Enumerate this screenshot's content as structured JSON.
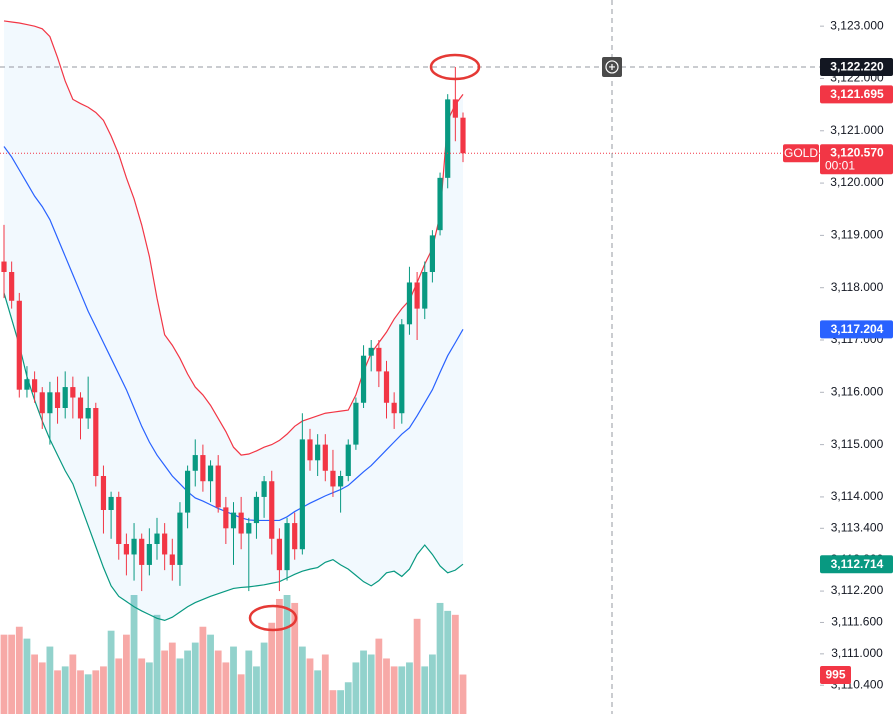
{
  "chart_data": {
    "type": "candlestick",
    "ylim": [
      3109.85,
      3123.5
    ],
    "yticks": [
      {
        "value": 3123,
        "label": "3,123.000"
      },
      {
        "value": 3122,
        "label": "3,122.000"
      },
      {
        "value": 3121,
        "label": "3,121.000"
      },
      {
        "value": 3120,
        "label": "3,120.000"
      },
      {
        "value": 3119,
        "label": "3,119.000"
      },
      {
        "value": 3118,
        "label": "3,118.000"
      },
      {
        "value": 3117,
        "label": "3,117.000"
      },
      {
        "value": 3116,
        "label": "3,116.000"
      },
      {
        "value": 3115,
        "label": "3,115.000"
      },
      {
        "value": 3114,
        "label": "3,114.000"
      },
      {
        "value": 3113.4,
        "label": "3,113.400"
      },
      {
        "value": 3112.8,
        "label": "3,112.800"
      },
      {
        "value": 3112.2,
        "label": "3,112.200"
      },
      {
        "value": 3111.6,
        "label": "3,111.600"
      },
      {
        "value": 3111,
        "label": "3,111.000"
      },
      {
        "value": 3110.4,
        "label": "3,110.400"
      }
    ],
    "grid": false,
    "up_color": "#089981",
    "down_color": "#f23645",
    "open": [
      3118.5,
      3118.3,
      3117.75,
      3116.05,
      3116.25,
      3116.0,
      3115.6,
      3116.0,
      3115.7,
      3116.1,
      3115.9,
      3115.5,
      3115.7,
      3114.4,
      3113.75,
      3114.0,
      3113.1,
      3112.9,
      3113.2,
      3112.7,
      3113.1,
      3113.3,
      3112.9,
      3112.7,
      3113.7,
      3114.5,
      3114.8,
      3114.3,
      3114.6,
      3113.8,
      3113.4,
      3113.7,
      3113.3,
      3113.5,
      3114.0,
      3114.3,
      3113.2,
      3112.6,
      3113.5,
      3113.0,
      3115.1,
      3114.7,
      3115.0,
      3114.5,
      3114.2,
      3114.4,
      3115.0,
      3115.8,
      3116.7,
      3116.85,
      3116.4,
      3115.8,
      3115.6,
      3117.3,
      3118.1,
      3117.6,
      3118.3,
      3119.1,
      3120.1,
      3121.6,
      3121.25
    ],
    "high": [
      3119.2,
      3118.5,
      3117.9,
      3116.5,
      3116.4,
      3116.1,
      3116.2,
      3116.3,
      3116.4,
      3116.3,
      3116.0,
      3116.3,
      3115.8,
      3114.6,
      3114.1,
      3114.1,
      3113.3,
      3113.5,
      3113.3,
      3113.4,
      3113.6,
      3113.5,
      3113.2,
      3113.9,
      3114.6,
      3115.1,
      3115.0,
      3114.7,
      3114.8,
      3114.0,
      3113.9,
      3114.0,
      3113.6,
      3114.1,
      3114.4,
      3114.5,
      3113.4,
      3113.6,
      3113.7,
      3115.6,
      3115.3,
      3115.2,
      3115.2,
      3114.9,
      3114.5,
      3115.1,
      3115.9,
      3116.9,
      3117.0,
      3117.0,
      3116.6,
      3116.0,
      3117.4,
      3118.4,
      3118.3,
      3118.5,
      3119.1,
      3120.2,
      3121.7,
      3122.22,
      3121.35
    ],
    "low": [
      3117.8,
      3117.6,
      3115.9,
      3115.9,
      3115.8,
      3115.3,
      3115.0,
      3115.4,
      3115.5,
      3115.5,
      3115.1,
      3115.3,
      3114.2,
      3113.3,
      3113.2,
      3112.8,
      3112.5,
      3112.4,
      3112.2,
      3112.5,
      3112.8,
      3112.6,
      3112.4,
      3112.3,
      3113.4,
      3114.2,
      3114.1,
      3113.9,
      3113.7,
      3113.1,
      3112.7,
      3113.0,
      3112.2,
      3113.2,
      3113.6,
      3112.9,
      3112.2,
      3112.4,
      3112.8,
      3112.9,
      3114.5,
      3114.4,
      3114.3,
      3114.0,
      3113.7,
      3114.3,
      3114.9,
      3115.7,
      3116.4,
      3116.1,
      3115.5,
      3115.3,
      3115.4,
      3117.1,
      3117.0,
      3117.4,
      3118.1,
      3119.0,
      3119.9,
      3120.8,
      3120.4
    ],
    "close": [
      3118.3,
      3117.75,
      3116.05,
      3116.25,
      3116.0,
      3115.6,
      3116.0,
      3115.7,
      3116.1,
      3115.9,
      3115.5,
      3115.7,
      3114.4,
      3113.75,
      3114.0,
      3113.1,
      3112.9,
      3113.2,
      3112.7,
      3113.1,
      3113.3,
      3112.9,
      3112.7,
      3113.7,
      3114.5,
      3114.8,
      3114.3,
      3114.6,
      3113.8,
      3113.4,
      3113.7,
      3113.3,
      3113.5,
      3114.0,
      3114.3,
      3113.2,
      3112.6,
      3113.5,
      3113.0,
      3115.1,
      3114.7,
      3115.0,
      3114.5,
      3114.2,
      3114.4,
      3115.0,
      3115.8,
      3116.7,
      3116.85,
      3116.4,
      3115.8,
      3115.6,
      3117.3,
      3118.1,
      3117.6,
      3118.3,
      3119.0,
      3120.1,
      3121.6,
      3121.25,
      3120.57
    ],
    "volume": {
      "vlim": [
        0,
        18000
      ],
      "up_color": "#92d2cc",
      "down_color": "#f7a9a7",
      "values": [
        2000,
        2000,
        2200,
        1900,
        1500,
        1300,
        1700,
        1100,
        1200,
        1500,
        1100,
        1000,
        1100,
        1200,
        2100,
        1400,
        2000,
        3000,
        1400,
        1300,
        2500,
        1600,
        1800,
        1400,
        1600,
        1800,
        2200,
        2000,
        1600,
        1300,
        1700,
        1000,
        1600,
        1200,
        1800,
        2300,
        2900,
        3000,
        2800,
        1700,
        1400,
        1100,
        1500,
        600,
        600,
        800,
        1300,
        1600,
        1500,
        1900,
        1400,
        1200,
        1200,
        1300,
        2400,
        1200,
        1500,
        2800,
        2600,
        2500,
        995
      ]
    },
    "bands": {
      "fill_color": "#2196f3",
      "upper": {
        "color": "#f23645",
        "value_label": "3,121.695",
        "values": [
          3123.1,
          3123.08,
          3123.06,
          3123.03,
          3123.0,
          3122.95,
          3122.8,
          3122.4,
          3121.95,
          3121.6,
          3121.52,
          3121.45,
          3121.35,
          3121.2,
          3120.9,
          3120.55,
          3120.1,
          3119.7,
          3119.2,
          3118.6,
          3117.8,
          3117.1,
          3116.9,
          3116.65,
          3116.35,
          3116.1,
          3115.95,
          3115.75,
          3115.5,
          3115.25,
          3114.95,
          3114.8,
          3114.82,
          3114.88,
          3114.95,
          3115.0,
          3115.08,
          3115.2,
          3115.35,
          3115.45,
          3115.5,
          3115.55,
          3115.6,
          3115.62,
          3115.64,
          3115.66,
          3115.95,
          3116.4,
          3116.75,
          3116.95,
          3117.15,
          3117.4,
          3117.6,
          3117.76,
          3118.1,
          3118.45,
          3118.75,
          3119.39,
          3121.2,
          3121.5,
          3121.695
        ]
      },
      "middle": {
        "color": "#2962ff",
        "value_label": "3,117.204",
        "values": [
          3120.7,
          3120.5,
          3120.25,
          3120.0,
          3119.75,
          3119.55,
          3119.3,
          3118.95,
          3118.6,
          3118.25,
          3117.9,
          3117.55,
          3117.25,
          3116.95,
          3116.65,
          3116.35,
          3116.05,
          3115.7,
          3115.35,
          3115.05,
          3114.8,
          3114.6,
          3114.4,
          3114.25,
          3114.1,
          3113.98,
          3113.92,
          3113.85,
          3113.78,
          3113.72,
          3113.66,
          3113.6,
          3113.56,
          3113.55,
          3113.55,
          3113.55,
          3113.55,
          3113.62,
          3113.72,
          3113.8,
          3113.88,
          3113.95,
          3114.02,
          3114.08,
          3114.14,
          3114.22,
          3114.35,
          3114.48,
          3114.6,
          3114.75,
          3114.9,
          3115.05,
          3115.2,
          3115.32,
          3115.55,
          3115.8,
          3116.05,
          3116.38,
          3116.7,
          3116.95,
          3117.204
        ]
      },
      "lower": {
        "color": "#089981",
        "value_label": "3,112.714",
        "values": [
          3117.9,
          3117.4,
          3116.9,
          3116.3,
          3115.85,
          3115.45,
          3115.1,
          3114.8,
          3114.5,
          3114.25,
          3113.85,
          3113.45,
          3113.05,
          3112.65,
          3112.3,
          3112.1,
          3112.0,
          3111.9,
          3111.82,
          3111.75,
          3111.68,
          3111.64,
          3111.7,
          3111.8,
          3111.9,
          3111.98,
          3112.04,
          3112.1,
          3112.15,
          3112.2,
          3112.25,
          3112.27,
          3112.28,
          3112.3,
          3112.32,
          3112.35,
          3112.38,
          3112.45,
          3112.52,
          3112.58,
          3112.62,
          3112.65,
          3112.75,
          3112.8,
          3112.7,
          3112.62,
          3112.5,
          3112.38,
          3112.3,
          3112.4,
          3112.55,
          3112.58,
          3112.48,
          3112.62,
          3112.9,
          3113.08,
          3112.9,
          3112.68,
          3112.55,
          3112.6,
          3112.714
        ]
      }
    },
    "last_price": {
      "symbol": "GOLD",
      "value": 3120.57,
      "label": "3,120.570",
      "countdown": "00:01",
      "color": "#f23645"
    },
    "crosshair": {
      "value": 3122.22,
      "label": "3,122.220",
      "color": "#131722"
    }
  }
}
